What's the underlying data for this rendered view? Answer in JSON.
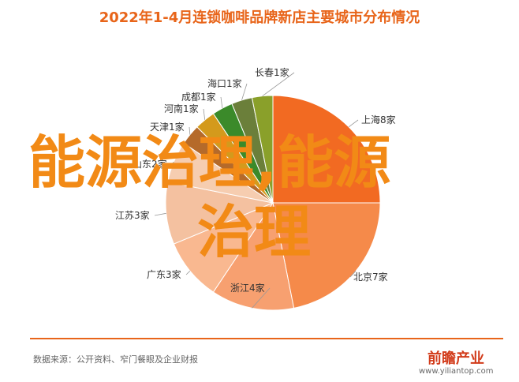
{
  "header": {
    "title": "2022年1-4月连锁咖啡品牌新店主要城市分布情况"
  },
  "chart_data": {
    "type": "pie",
    "title": "2022年1-4月连锁咖啡品牌新店主要城市分布情况",
    "unit": "家",
    "slices": [
      {
        "label": "上海8家",
        "city": "上海",
        "value": 8,
        "color": "#f26a22"
      },
      {
        "label": "北京7家",
        "city": "北京",
        "value": 7,
        "color": "#f58a4a"
      },
      {
        "label": "浙江4家",
        "city": "浙江",
        "value": 4,
        "color": "#f7a070"
      },
      {
        "label": "广东3家",
        "city": "广东",
        "value": 3,
        "color": "#f9b890"
      },
      {
        "label": "江苏3家",
        "city": "江苏",
        "value": 3,
        "color": "#f4c1a0"
      },
      {
        "label": "山东2家",
        "city": "山东",
        "value": 2,
        "color": "#f6cdb0"
      },
      {
        "label": "天津1家",
        "city": "天津",
        "value": 1,
        "color": "#b56a2a"
      },
      {
        "label": "河南1家",
        "city": "河南",
        "value": 1,
        "color": "#d49a1c"
      },
      {
        "label": "成都1家",
        "city": "成都",
        "value": 1,
        "color": "#3b8a2a"
      },
      {
        "label": "海口1家",
        "city": "海口",
        "value": 1,
        "color": "#6b7f3a"
      },
      {
        "label": "长春1家",
        "city": "长春",
        "value": 1,
        "color": "#8aa02a"
      }
    ]
  },
  "watermark": {
    "line1": "能源治理,能源",
    "line2": "治理"
  },
  "footer": {
    "source": "数据来源：公开资料、窄门餐眼及企业财报",
    "brand": "前瞻产业",
    "brand_url": "www.yiliantop.com"
  },
  "colors": {
    "title": "#e8651a",
    "divider": "#e8651a",
    "watermark": "#f28a16"
  }
}
